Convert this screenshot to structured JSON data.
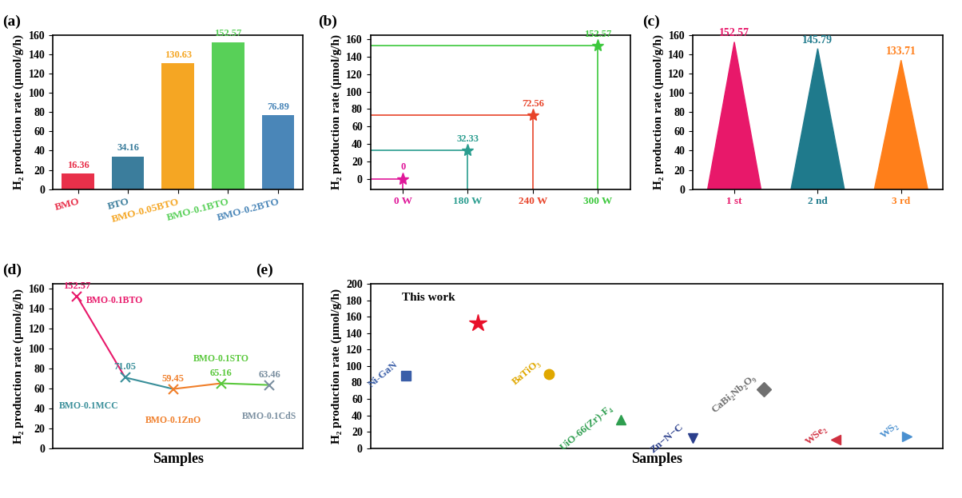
{
  "chart_data": [
    {
      "type": "bar",
      "title": "(a)",
      "ylabel": "H₂ production rate (μmol/g/h)",
      "categories": [
        "BMO",
        "BTO",
        "BMO-0.05BTO",
        "BMO-0.1BTO",
        "BMO-0.2BTO"
      ],
      "values": [
        16.36,
        34.16,
        130.63,
        152.57,
        76.89
      ],
      "colors": [
        "#e8304a",
        "#3b7d9c",
        "#f5a623",
        "#58d058",
        "#4a86b8"
      ],
      "ylim": [
        0,
        160
      ],
      "yticks": [
        0,
        20,
        40,
        60,
        80,
        100,
        120,
        140,
        160
      ],
      "data_labels": true
    },
    {
      "type": "scatter",
      "title": "(b)",
      "ylabel": "H₂ production rate (μmol/g/h)",
      "categories": [
        "0 W",
        "180 W",
        "240 W",
        "300 W"
      ],
      "values": [
        0,
        32.33,
        72.56,
        152.57
      ],
      "colors": [
        "#e0189a",
        "#2a9d8f",
        "#e8442a",
        "#3cc83c"
      ],
      "marker": "*",
      "line_style": "solid",
      "ylim": [
        -12,
        165
      ],
      "yticks": [
        0,
        20,
        40,
        60,
        80,
        100,
        120,
        140,
        160
      ],
      "data_labels": true
    },
    {
      "type": "cone",
      "title": "(c)",
      "ylabel": "H₂ production rate (μmol/g/h)",
      "categories": [
        "1 st",
        "2 nd",
        "3 rd"
      ],
      "values": [
        152.57,
        145.79,
        133.71
      ],
      "colors": [
        "#e8186a",
        "#1f7a8c",
        "#ff7f1a"
      ],
      "ylim": [
        0,
        160
      ],
      "yticks": [
        0,
        20,
        40,
        60,
        80,
        100,
        120,
        140,
        160
      ],
      "data_labels": true
    },
    {
      "type": "line",
      "title": "(d)",
      "ylabel": "H₂ production rate (μmol/g/h)",
      "xlabel": "Samples",
      "categories": [
        "BMO-0.1BTO",
        "BMO-0.1MCC",
        "BMO-0.1ZnO",
        "BMO-0.1STO",
        "BMO-0.1CdS"
      ],
      "values": [
        152.57,
        71.05,
        59.45,
        65.16,
        63.46
      ],
      "colors": [
        "#e8186a",
        "#3a8f9a",
        "#f07f2a",
        "#5ac83c",
        "#7a8fa0"
      ],
      "marker": "x",
      "tick_labels": "y",
      "ylim": [
        0,
        165
      ],
      "yticks": [
        0,
        20,
        40,
        60,
        80,
        100,
        120,
        140,
        160
      ],
      "data_labels": true
    },
    {
      "type": "scatter",
      "title": "(e)",
      "ylabel": "H₂ production rate (μmol/g/h)",
      "xlabel": "Samples",
      "categories": [
        "Ni-GaN",
        "This work",
        "BaTiO₃",
        "UiO-66(Zr)-F₄",
        "Zn−N−C",
        "CaBi₂Nb₂O₉",
        "WSe₂",
        "WS₂"
      ],
      "series": [
        {
          "name": "Ni-GaN",
          "color": "#3a5ea8",
          "marker": "s",
          "values": [
            88,
            null,
            null,
            null,
            null,
            null,
            null,
            null
          ]
        },
        {
          "name": "This work",
          "color": "#e8102a",
          "marker": "*",
          "values": [
            null,
            152.57,
            null,
            null,
            null,
            null,
            null,
            null
          ]
        },
        {
          "name": "BaTiO₃",
          "color": "#e0a800",
          "marker": "o",
          "values": [
            null,
            null,
            90,
            null,
            null,
            null,
            null,
            null
          ]
        },
        {
          "name": "UiO-66(Zr)-F₄",
          "color": "#2e9e4f",
          "marker": "^",
          "values": [
            null,
            null,
            null,
            35,
            null,
            null,
            null,
            null
          ]
        },
        {
          "name": "Zn−N−C",
          "color": "#2b3f8c",
          "marker": "v",
          "values": [
            null,
            null,
            null,
            null,
            12,
            null,
            null,
            null
          ]
        },
        {
          "name": "CaBi₂Nb₂O₉",
          "color": "#707070",
          "marker": "D",
          "values": [
            null,
            null,
            null,
            null,
            null,
            72,
            null,
            null
          ]
        },
        {
          "name": "WSe₂",
          "color": "#d03040",
          "marker": "<",
          "values": [
            null,
            null,
            null,
            null,
            null,
            null,
            10,
            null
          ]
        },
        {
          "name": "WS₂",
          "color": "#4a90d0",
          "marker": ">",
          "values": [
            null,
            null,
            null,
            null,
            null,
            null,
            null,
            14
          ]
        }
      ],
      "tick_labels": "y",
      "ylim": [
        0,
        200
      ],
      "yticks": [
        0,
        20,
        40,
        60,
        80,
        100,
        120,
        140,
        160,
        180,
        200
      ]
    }
  ]
}
